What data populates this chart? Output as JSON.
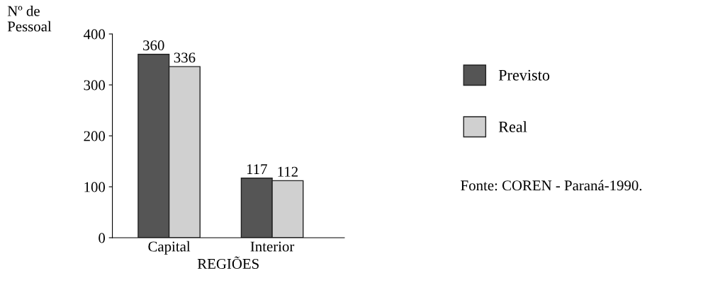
{
  "chart_data": {
    "type": "bar",
    "ylabel": "Nº de\nPessoal",
    "xlabel": "REGIÕES",
    "categories": [
      "Capital",
      "Interior"
    ],
    "series": [
      {
        "name": "Previsto",
        "color": "#555555",
        "values": [
          360,
          117
        ]
      },
      {
        "name": "Real",
        "color": "#d0d0d0",
        "values": [
          336,
          112
        ]
      }
    ],
    "ylim": [
      0,
      400
    ],
    "yticks": [
      0,
      100,
      200,
      300,
      400
    ],
    "data_labels": true,
    "legend": "right",
    "annotations": [
      "Fonte: COREN - Paraná-1990."
    ]
  }
}
